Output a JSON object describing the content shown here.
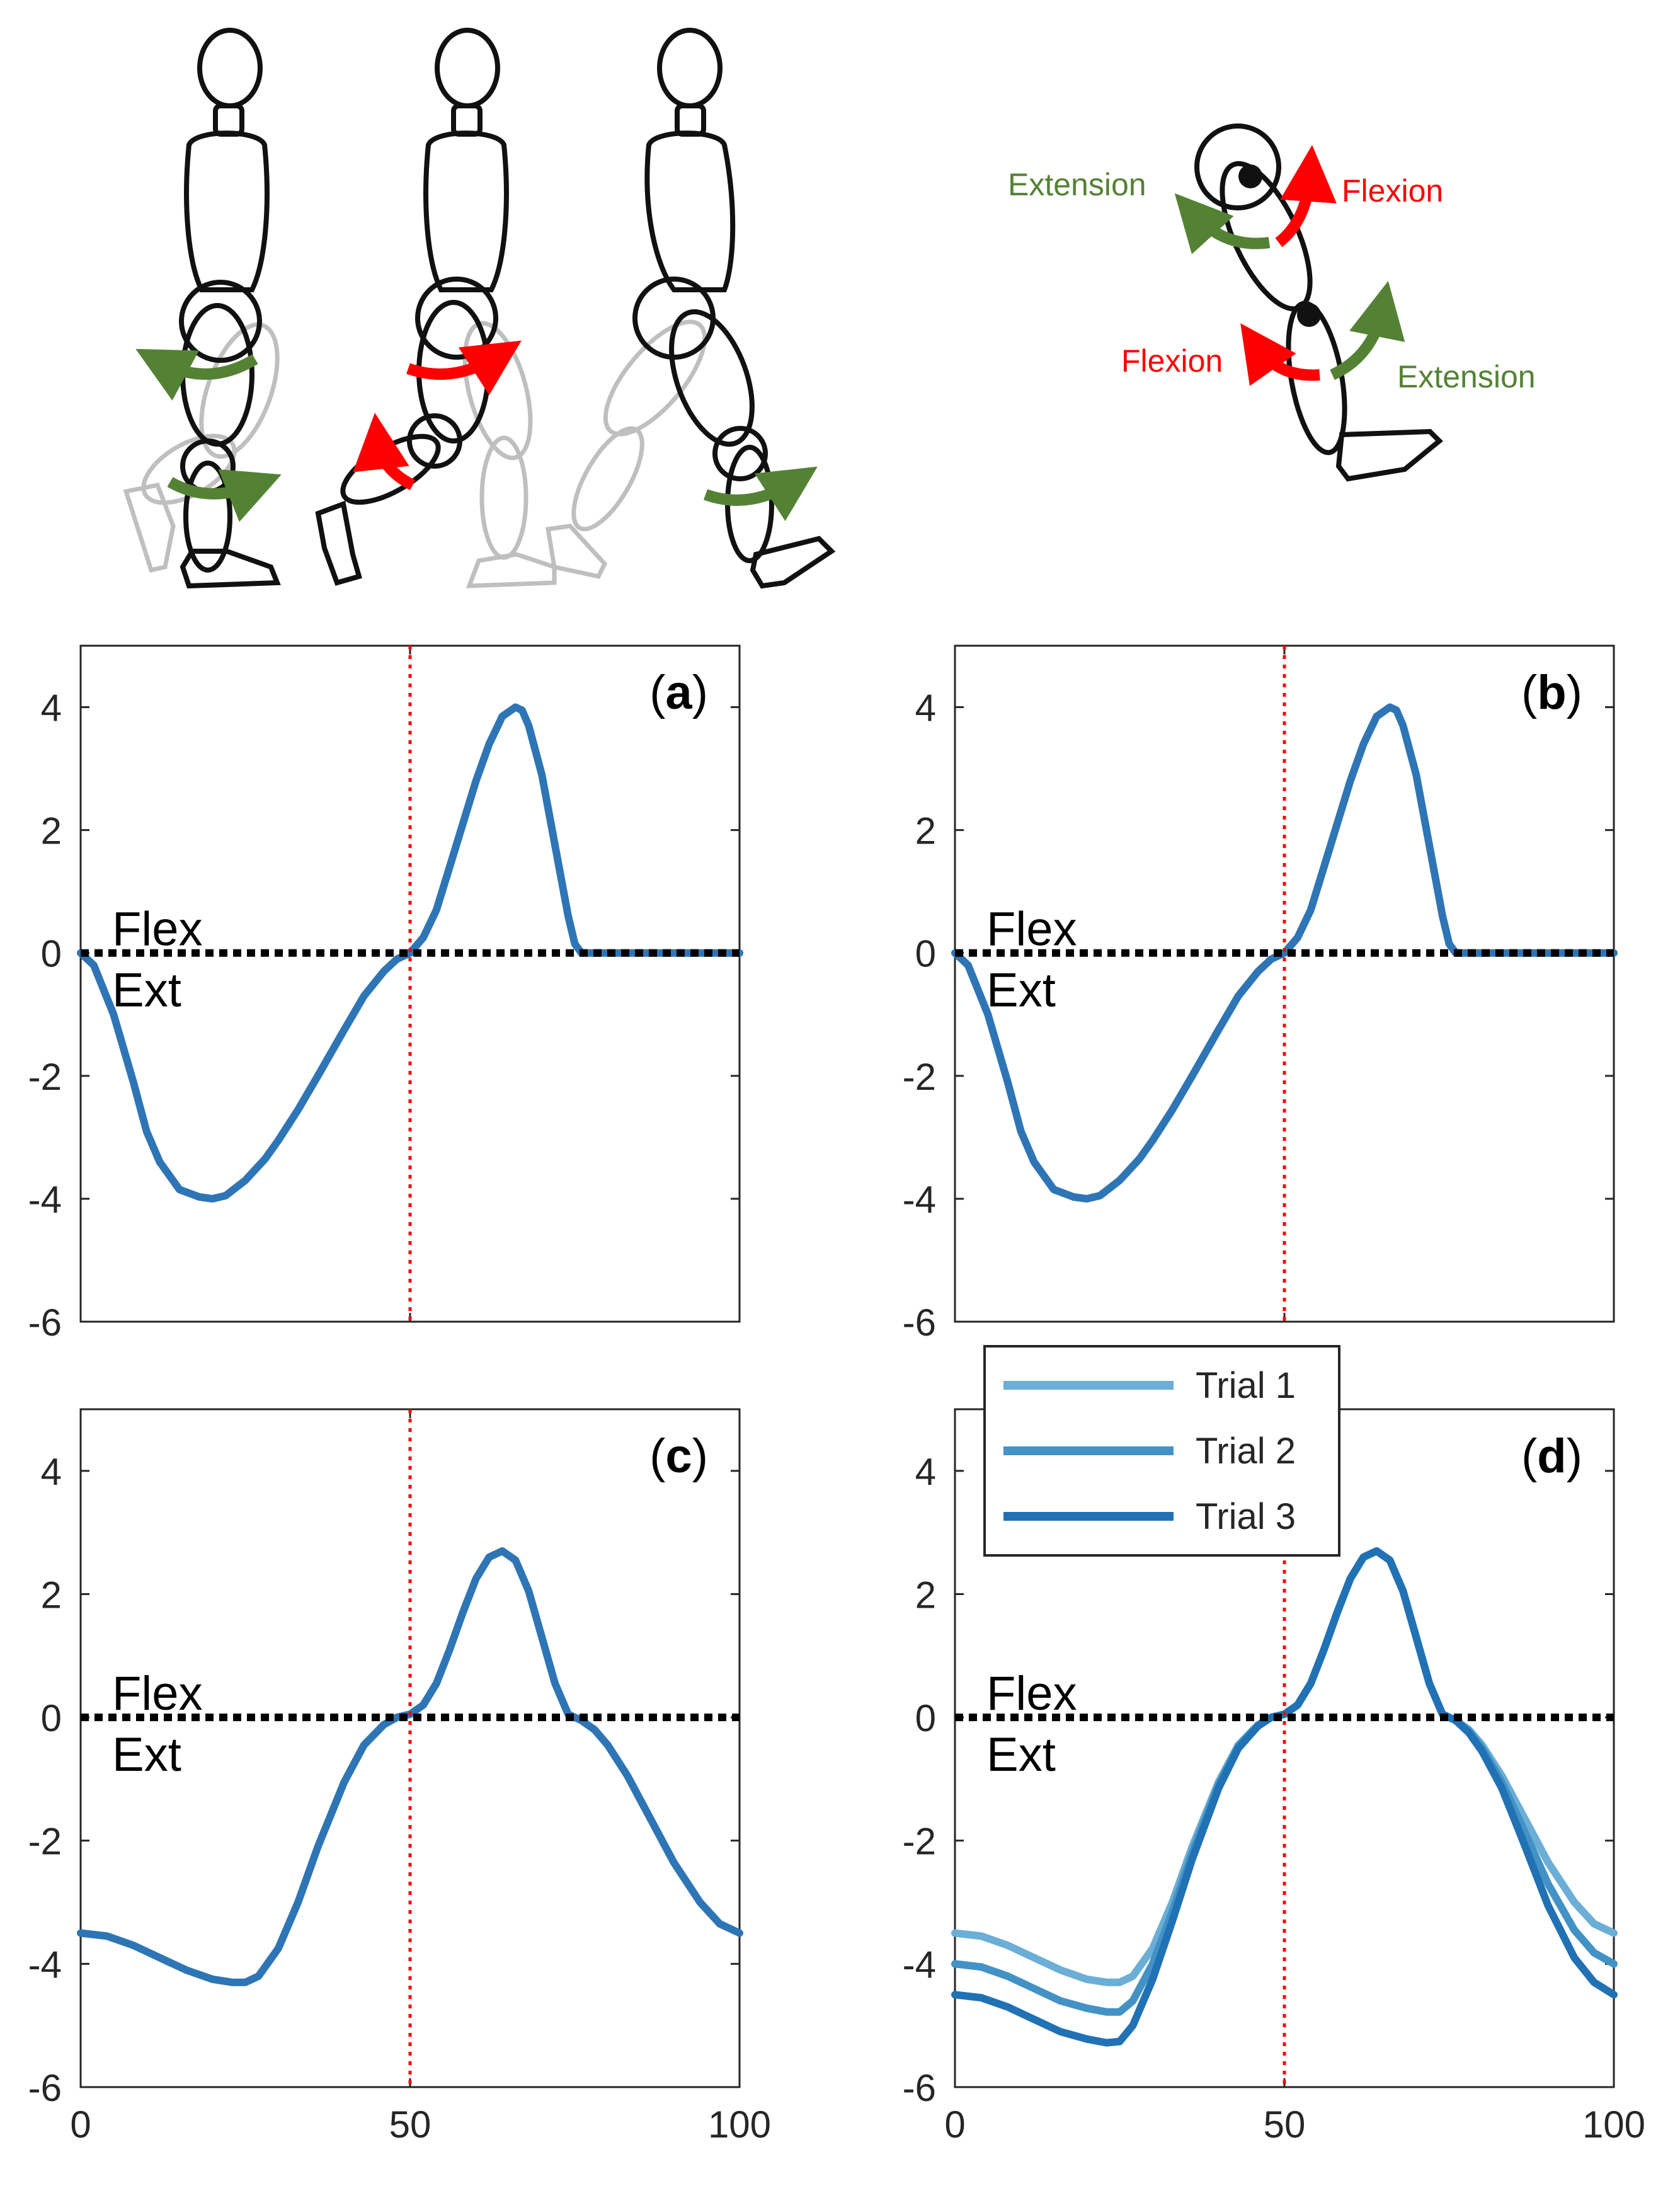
{
  "illustration": {
    "left_labels": [],
    "right_labels": {
      "hip_extension": "Extension",
      "hip_flexion": "Flexion",
      "knee_flexion": "Flexion",
      "knee_extension": "Extension"
    },
    "colors": {
      "flexion": "#ff0000",
      "extension": "#548235",
      "figure": "#111111",
      "ghost": "#bfbfbf"
    }
  },
  "chart_data": [
    {
      "type": "line",
      "panel_label": "a",
      "xlim": [
        0,
        100
      ],
      "ylim": [
        -6,
        5
      ],
      "yticks": [
        -6,
        -4,
        -2,
        0,
        2,
        4
      ],
      "xticks": [],
      "annotations": {
        "upper": "Flex",
        "lower": "Ext"
      },
      "reference_lines": {
        "zero_line": 0,
        "vertical_line_x": 50
      },
      "series": [
        {
          "color": "#2e75b6",
          "x": [
            0,
            2,
            5,
            8,
            10,
            12,
            15,
            18,
            20,
            22,
            25,
            28,
            30,
            33,
            36,
            40,
            43,
            46,
            48,
            50,
            52,
            54,
            56,
            58,
            60,
            62,
            64,
            66,
            67,
            68,
            70,
            72,
            74,
            75,
            76,
            80,
            90,
            100
          ],
          "y": [
            0,
            -0.2,
            -1.0,
            -2.1,
            -2.9,
            -3.4,
            -3.85,
            -3.97,
            -4.0,
            -3.95,
            -3.7,
            -3.35,
            -3.05,
            -2.55,
            -2.0,
            -1.25,
            -0.7,
            -0.3,
            -0.1,
            0,
            0.25,
            0.7,
            1.4,
            2.1,
            2.8,
            3.4,
            3.85,
            4.0,
            3.95,
            3.7,
            2.9,
            1.75,
            0.6,
            0.15,
            0,
            0,
            0,
            0
          ]
        }
      ]
    },
    {
      "type": "line",
      "panel_label": "b",
      "xlim": [
        0,
        100
      ],
      "ylim": [
        -6,
        5
      ],
      "yticks": [
        -6,
        -4,
        -2,
        0,
        2,
        4
      ],
      "xticks": [],
      "annotations": {
        "upper": "Flex",
        "lower": "Ext"
      },
      "reference_lines": {
        "zero_line": 0,
        "vertical_line_x": 50
      },
      "series": [
        {
          "color": "#2e75b6",
          "x": [
            0,
            2,
            5,
            8,
            10,
            12,
            15,
            18,
            20,
            22,
            25,
            28,
            30,
            33,
            36,
            40,
            43,
            46,
            48,
            50,
            52,
            54,
            56,
            58,
            60,
            62,
            64,
            66,
            67,
            68,
            70,
            72,
            74,
            75,
            76,
            80,
            90,
            100
          ],
          "y": [
            0,
            -0.2,
            -1.0,
            -2.1,
            -2.9,
            -3.4,
            -3.85,
            -3.97,
            -4.0,
            -3.95,
            -3.7,
            -3.35,
            -3.05,
            -2.55,
            -2.0,
            -1.25,
            -0.7,
            -0.3,
            -0.1,
            0,
            0.25,
            0.7,
            1.4,
            2.1,
            2.8,
            3.4,
            3.85,
            4.0,
            3.95,
            3.7,
            2.9,
            1.75,
            0.6,
            0.15,
            0,
            0,
            0,
            0
          ]
        }
      ]
    },
    {
      "type": "line",
      "panel_label": "c",
      "xlim": [
        0,
        100
      ],
      "ylim": [
        -6,
        5
      ],
      "yticks": [
        -6,
        -4,
        -2,
        0,
        2,
        4
      ],
      "xticks": [
        0,
        50,
        100
      ],
      "annotations": {
        "upper": "Flex",
        "lower": "Ext"
      },
      "reference_lines": {
        "zero_line": 0,
        "vertical_line_x": 50
      },
      "series": [
        {
          "color": "#2e75b6",
          "x": [
            0,
            4,
            8,
            12,
            16,
            20,
            23,
            25,
            27,
            30,
            33,
            36,
            40,
            43,
            46,
            48,
            50,
            52,
            54,
            56,
            58,
            60,
            62,
            64,
            66,
            68,
            70,
            72,
            74,
            76,
            78,
            80,
            83,
            86,
            90,
            94,
            97,
            100
          ],
          "y": [
            -3.5,
            -3.55,
            -3.7,
            -3.9,
            -4.1,
            -4.25,
            -4.3,
            -4.3,
            -4.2,
            -3.75,
            -3.0,
            -2.1,
            -1.05,
            -0.45,
            -0.12,
            0,
            0.05,
            0.2,
            0.55,
            1.1,
            1.7,
            2.25,
            2.6,
            2.7,
            2.55,
            2.05,
            1.3,
            0.55,
            0.05,
            -0.05,
            -0.2,
            -0.45,
            -0.95,
            -1.55,
            -2.35,
            -3.0,
            -3.35,
            -3.5
          ]
        }
      ]
    },
    {
      "type": "line",
      "panel_label": "d",
      "xlim": [
        0,
        100
      ],
      "ylim": [
        -6,
        5
      ],
      "yticks": [
        -6,
        -4,
        -2,
        0,
        2,
        4
      ],
      "xticks": [
        0,
        50,
        100
      ],
      "annotations": {
        "upper": "Flex",
        "lower": "Ext"
      },
      "reference_lines": {
        "zero_line": 0,
        "vertical_line_x": 50
      },
      "legend": {
        "placement": "top-left",
        "entries": [
          "Trial 1",
          "Trial 2",
          "Trial 3"
        ]
      },
      "series": [
        {
          "name": "Trial 1",
          "color": "#6baed6",
          "x": [
            0,
            4,
            8,
            12,
            16,
            20,
            23,
            25,
            27,
            30,
            33,
            36,
            40,
            43,
            46,
            48,
            50,
            52,
            54,
            56,
            58,
            60,
            62,
            64,
            66,
            68,
            70,
            72,
            74,
            76,
            78,
            80,
            83,
            86,
            90,
            94,
            97,
            100
          ],
          "y": [
            -3.5,
            -3.55,
            -3.7,
            -3.9,
            -4.1,
            -4.25,
            -4.3,
            -4.3,
            -4.2,
            -3.75,
            -3.0,
            -2.1,
            -1.05,
            -0.45,
            -0.12,
            0,
            0.05,
            0.2,
            0.55,
            1.1,
            1.7,
            2.25,
            2.6,
            2.7,
            2.55,
            2.05,
            1.3,
            0.55,
            0.05,
            -0.05,
            -0.2,
            -0.45,
            -0.95,
            -1.55,
            -2.35,
            -3.0,
            -3.35,
            -3.5
          ]
        },
        {
          "name": "Trial 2",
          "color": "#4292c6",
          "x": [
            0,
            4,
            8,
            12,
            16,
            20,
            23,
            25,
            27,
            30,
            33,
            36,
            40,
            43,
            46,
            48,
            50,
            52,
            54,
            56,
            58,
            60,
            62,
            64,
            66,
            68,
            70,
            72,
            74,
            76,
            78,
            80,
            83,
            86,
            90,
            94,
            97,
            100
          ],
          "y": [
            -4.0,
            -4.05,
            -4.2,
            -4.4,
            -4.6,
            -4.72,
            -4.78,
            -4.78,
            -4.6,
            -4.0,
            -3.15,
            -2.2,
            -1.1,
            -0.47,
            -0.13,
            0,
            0.05,
            0.2,
            0.55,
            1.1,
            1.7,
            2.25,
            2.6,
            2.7,
            2.55,
            2.05,
            1.3,
            0.55,
            0.05,
            -0.05,
            -0.22,
            -0.5,
            -1.05,
            -1.75,
            -2.7,
            -3.45,
            -3.82,
            -4.0
          ]
        },
        {
          "name": "Trial 3",
          "color": "#2171b5",
          "x": [
            0,
            4,
            8,
            12,
            16,
            20,
            23,
            25,
            27,
            30,
            33,
            36,
            40,
            43,
            46,
            48,
            50,
            52,
            54,
            56,
            58,
            60,
            62,
            64,
            66,
            68,
            70,
            72,
            74,
            76,
            78,
            80,
            83,
            86,
            90,
            94,
            97,
            100
          ],
          "y": [
            -4.5,
            -4.55,
            -4.7,
            -4.9,
            -5.1,
            -5.22,
            -5.28,
            -5.26,
            -5.0,
            -4.25,
            -3.3,
            -2.3,
            -1.15,
            -0.5,
            -0.14,
            0,
            0.05,
            0.2,
            0.55,
            1.1,
            1.7,
            2.25,
            2.6,
            2.7,
            2.55,
            2.05,
            1.3,
            0.55,
            0.05,
            -0.05,
            -0.25,
            -0.55,
            -1.15,
            -1.95,
            -3.05,
            -3.9,
            -4.3,
            -4.5
          ]
        }
      ]
    }
  ]
}
